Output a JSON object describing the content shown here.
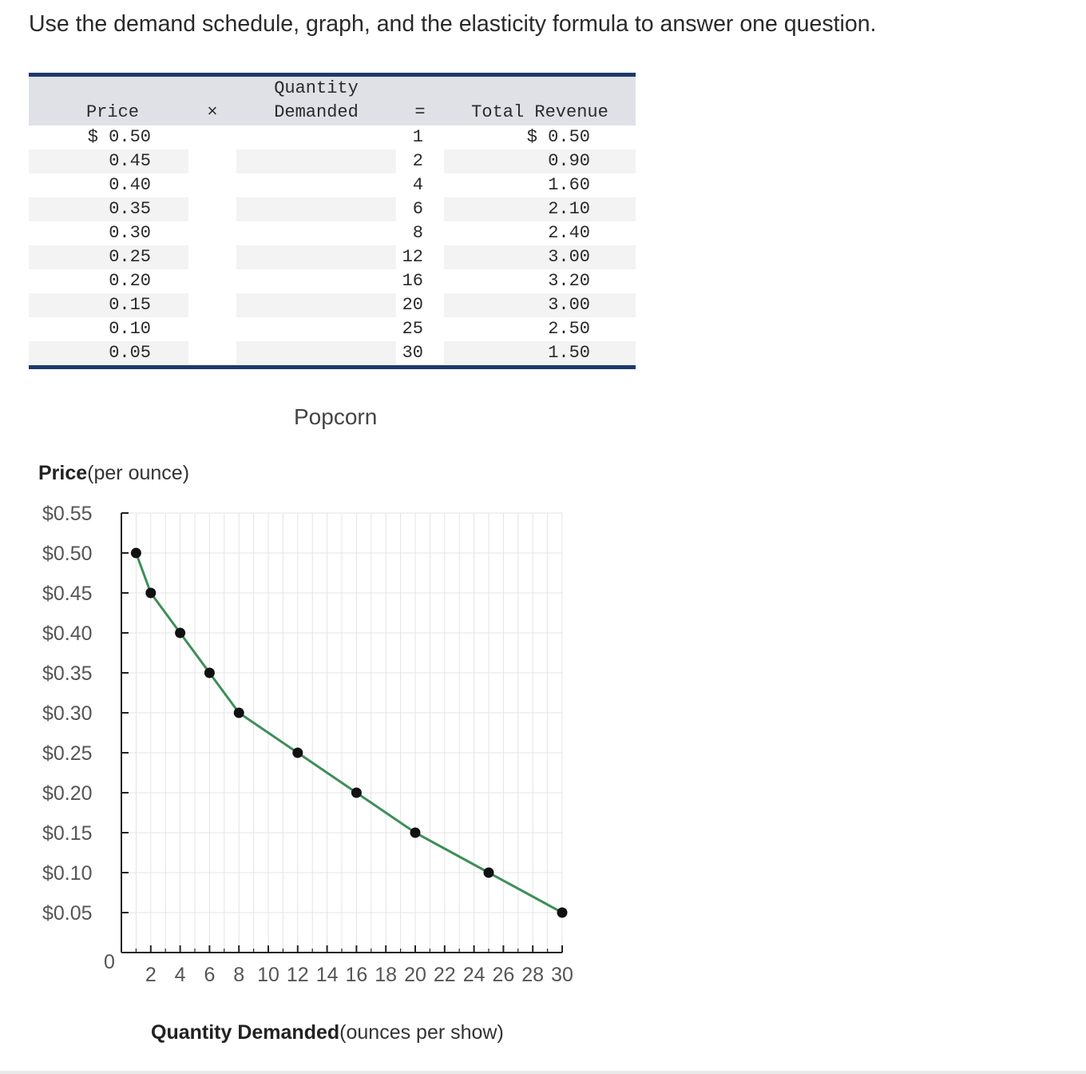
{
  "prompt": "Use the demand schedule, graph, and the elasticity formula to answer one question.",
  "table": {
    "header": {
      "price": "Price",
      "times": "×",
      "qty_line1": "Quantity",
      "qty_line2": "Demanded",
      "equals": "=",
      "revenue": "Total Revenue"
    },
    "rows": [
      {
        "price": "$ 0.50",
        "qty": "1",
        "revenue": "$ 0.50"
      },
      {
        "price": "0.45",
        "qty": "2",
        "revenue": "0.90"
      },
      {
        "price": "0.40",
        "qty": "4",
        "revenue": "1.60"
      },
      {
        "price": "0.35",
        "qty": "6",
        "revenue": "2.10"
      },
      {
        "price": "0.30",
        "qty": "8",
        "revenue": "2.40"
      },
      {
        "price": "0.25",
        "qty": "12",
        "revenue": "3.00"
      },
      {
        "price": "0.20",
        "qty": "16",
        "revenue": "3.20"
      },
      {
        "price": "0.15",
        "qty": "20",
        "revenue": "3.00"
      },
      {
        "price": "0.10",
        "qty": "25",
        "revenue": "2.50"
      },
      {
        "price": "0.05",
        "qty": "30",
        "revenue": "1.50"
      }
    ]
  },
  "chart_data": {
    "type": "line",
    "title": "Popcorn",
    "ylabel_bold": "Price",
    "ylabel_rest": "(per ounce)",
    "xlabel_bold": "Quantity Demanded",
    "xlabel_rest": "(ounces per show)",
    "xlim": [
      0,
      30
    ],
    "ylim": [
      0,
      0.55
    ],
    "x_ticks": [
      2,
      4,
      6,
      8,
      10,
      12,
      14,
      16,
      18,
      20,
      22,
      24,
      26,
      28,
      30
    ],
    "x_tick_labels": [
      "2",
      "4",
      "6",
      "8",
      "10",
      "12",
      "14",
      "16",
      "18",
      "20",
      "22",
      "24",
      "26",
      "28",
      "30"
    ],
    "y_ticks": [
      0.05,
      0.1,
      0.15,
      0.2,
      0.25,
      0.3,
      0.35,
      0.4,
      0.45,
      0.5,
      0.55
    ],
    "y_tick_labels": [
      "$0.05",
      "$0.10",
      "$0.15",
      "$0.20",
      "$0.25",
      "$0.30",
      "$0.35",
      "$0.40",
      "$0.45",
      "$0.50",
      "$0.55"
    ],
    "origin_label": "0",
    "grid": true,
    "line_color": "#3d8f57",
    "series": [
      {
        "x": [
          1,
          2,
          4,
          6,
          8,
          12,
          16,
          20,
          25,
          30
        ],
        "y": [
          0.5,
          0.45,
          0.4,
          0.35,
          0.3,
          0.25,
          0.2,
          0.15,
          0.1,
          0.05
        ]
      }
    ]
  }
}
